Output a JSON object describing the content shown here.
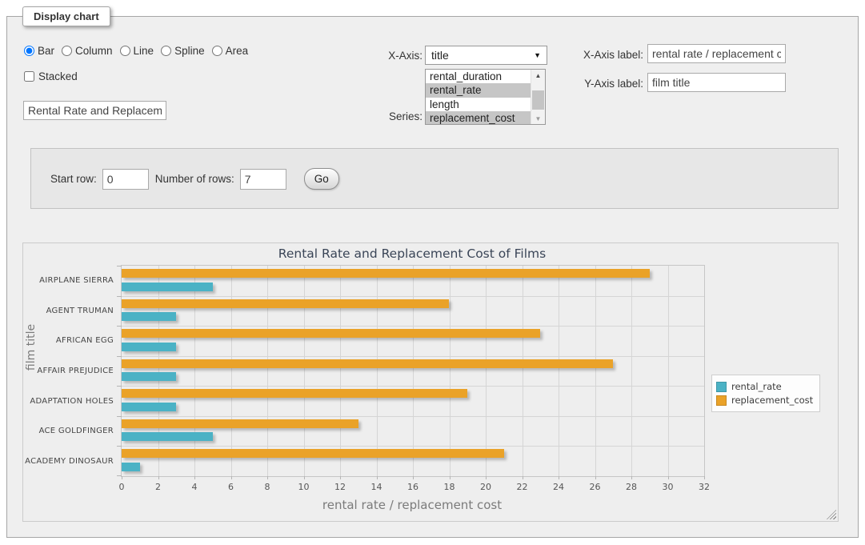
{
  "panel": {
    "legend": "Display chart"
  },
  "chart_types": [
    {
      "label": "Bar",
      "selected": true
    },
    {
      "label": "Column",
      "selected": false
    },
    {
      "label": "Line",
      "selected": false
    },
    {
      "label": "Spline",
      "selected": false
    },
    {
      "label": "Area",
      "selected": false
    }
  ],
  "stacked": {
    "label": "Stacked",
    "checked": false
  },
  "title_input": {
    "value": "Rental Rate and Replacement Cost of Films"
  },
  "x_axis": {
    "label": "X-Axis:",
    "selected": "title"
  },
  "series_select": {
    "label": "Series:",
    "options": [
      {
        "label": "rental_duration",
        "selected": false
      },
      {
        "label": "rental_rate",
        "selected": true
      },
      {
        "label": "length",
        "selected": false
      },
      {
        "label": "replacement_cost",
        "selected": true
      }
    ]
  },
  "x_axis_label": {
    "label": "X-Axis label:",
    "value": "rental rate / replacement cost"
  },
  "y_axis_label": {
    "label": "Y-Axis label:",
    "value": "film title"
  },
  "row_controls": {
    "start_row_label": "Start row:",
    "start_row_value": "0",
    "num_rows_label": "Number of rows:",
    "num_rows_value": "7",
    "go_label": "Go"
  },
  "chart_data": {
    "type": "bar",
    "orientation": "horizontal",
    "title": "Rental Rate and Replacement Cost of Films",
    "xlabel": "rental rate / replacement cost",
    "ylabel": "film title",
    "categories": [
      "AIRPLANE SIERRA",
      "AGENT TRUMAN",
      "AFRICAN EGG",
      "AFFAIR PREJUDICE",
      "ADAPTATION HOLES",
      "ACE GOLDFINGER",
      "ACADEMY DINOSAUR"
    ],
    "series": [
      {
        "name": "rental_rate",
        "color": "#4bb2c5",
        "values": [
          4.99,
          2.99,
          2.99,
          2.99,
          2.99,
          4.99,
          0.99
        ]
      },
      {
        "name": "replacement_cost",
        "color": "#eaa228",
        "values": [
          28.99,
          17.99,
          22.99,
          26.99,
          18.99,
          12.99,
          20.99
        ]
      }
    ],
    "xlim": [
      0,
      32
    ],
    "xticks": [
      0,
      2,
      4,
      6,
      8,
      10,
      12,
      14,
      16,
      18,
      20,
      22,
      24,
      26,
      28,
      30,
      32
    ],
    "grid": true,
    "legend_position": "right",
    "plot_background": "#eeeeee"
  }
}
